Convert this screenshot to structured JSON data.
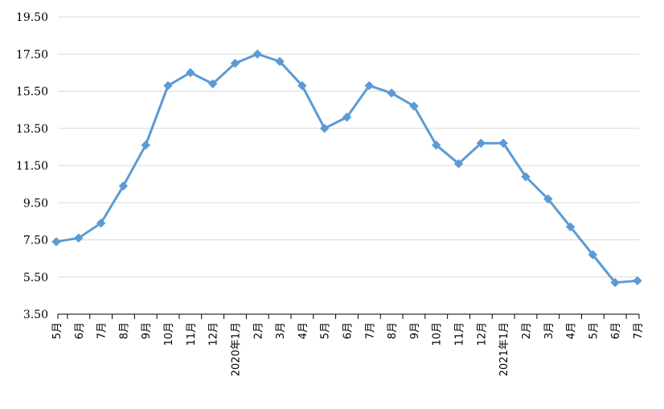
{
  "chart_data": {
    "type": "line",
    "title": "",
    "xlabel": "",
    "ylabel": "",
    "ylim": [
      3.5,
      19.5
    ],
    "yticks": [
      "3.50",
      "5.50",
      "7.50",
      "9.50",
      "11.50",
      "13.50",
      "15.50",
      "17.50",
      "19.50"
    ],
    "grid": "horizontal",
    "legend": "none",
    "categories": [
      "5月",
      "6月",
      "7月",
      "8月",
      "9月",
      "10月",
      "11月",
      "12月",
      "2020年1月",
      "2月",
      "3月",
      "4月",
      "5月",
      "6月",
      "7月",
      "8月",
      "9月",
      "10月",
      "11月",
      "12月",
      "2021年1月",
      "2月",
      "3月",
      "4月",
      "5月",
      "6月",
      "7月"
    ],
    "series": [
      {
        "values": [
          7.4,
          7.6,
          8.4,
          10.4,
          12.6,
          15.8,
          16.5,
          15.9,
          17.0,
          17.5,
          17.1,
          15.8,
          13.5,
          14.1,
          15.8,
          15.4,
          14.7,
          12.6,
          11.6,
          12.7,
          12.7,
          10.9,
          9.7,
          8.2,
          6.7,
          5.2,
          5.3
        ],
        "color": "#5B9BD5"
      }
    ]
  }
}
